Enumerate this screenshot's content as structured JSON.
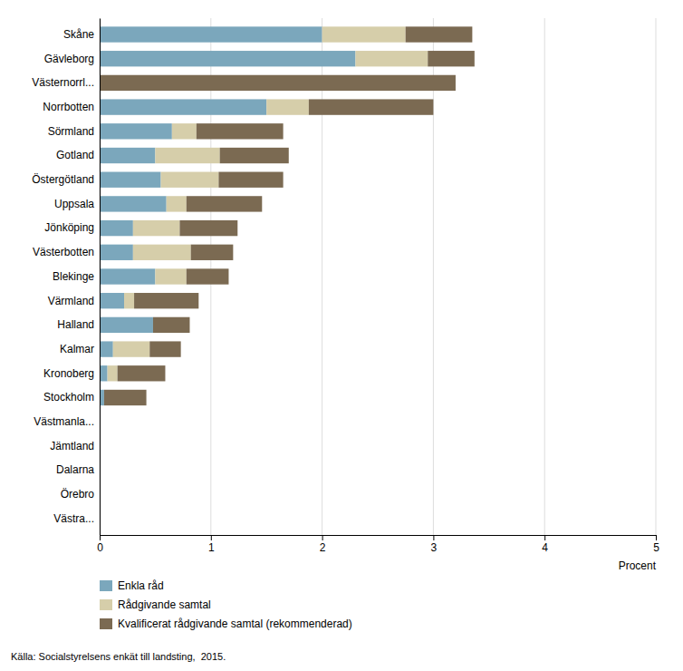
{
  "chart_data": {
    "type": "bar",
    "orientation": "horizontal",
    "stacked": true,
    "categories": [
      "Skåne",
      "Gävleborg",
      "Västernorrl...",
      "Norrbotten",
      "Sörmland",
      "Gotland",
      "Östergötland",
      "Uppsala",
      "Jönköping",
      "Västerbotten",
      "Blekinge",
      "Värmland",
      "Halland",
      "Kalmar",
      "Kronoberg",
      "Stockholm",
      "Västmanla...",
      "Jämtland",
      "Dalarna",
      "Örebro",
      "Västra..."
    ],
    "series": [
      {
        "name": "Enkla råd",
        "color": "#7BA7BC",
        "values": [
          2.0,
          2.3,
          0.0,
          1.5,
          0.65,
          0.5,
          0.55,
          0.6,
          0.3,
          0.3,
          0.5,
          0.22,
          0.48,
          0.12,
          0.07,
          0.04,
          0.0,
          0.0,
          0.0,
          0.0,
          0.0
        ]
      },
      {
        "name": "Rådgivande samtal",
        "color": "#D6CEAA",
        "values": [
          0.75,
          0.65,
          0.0,
          0.38,
          0.22,
          0.58,
          0.52,
          0.18,
          0.42,
          0.52,
          0.28,
          0.09,
          0.0,
          0.33,
          0.09,
          0.0,
          0.0,
          0.0,
          0.0,
          0.0,
          0.0
        ]
      },
      {
        "name": "Kvalificerat rådgivande samtal (rekommenderad)",
        "color": "#7B6A52",
        "values": [
          0.6,
          0.42,
          3.2,
          1.12,
          0.78,
          0.62,
          0.58,
          0.68,
          0.52,
          0.38,
          0.38,
          0.58,
          0.33,
          0.28,
          0.43,
          0.38,
          0.0,
          0.0,
          0.0,
          0.0,
          0.0
        ]
      }
    ],
    "xlim": [
      0,
      5
    ],
    "xticks": [
      0,
      1,
      2,
      3,
      4,
      5
    ],
    "xlabel": "Procent",
    "annotations": [
      "Källa: Socialstyrelsens enkät till landsting,  2015."
    ],
    "grid": true,
    "legend": "bottom"
  }
}
